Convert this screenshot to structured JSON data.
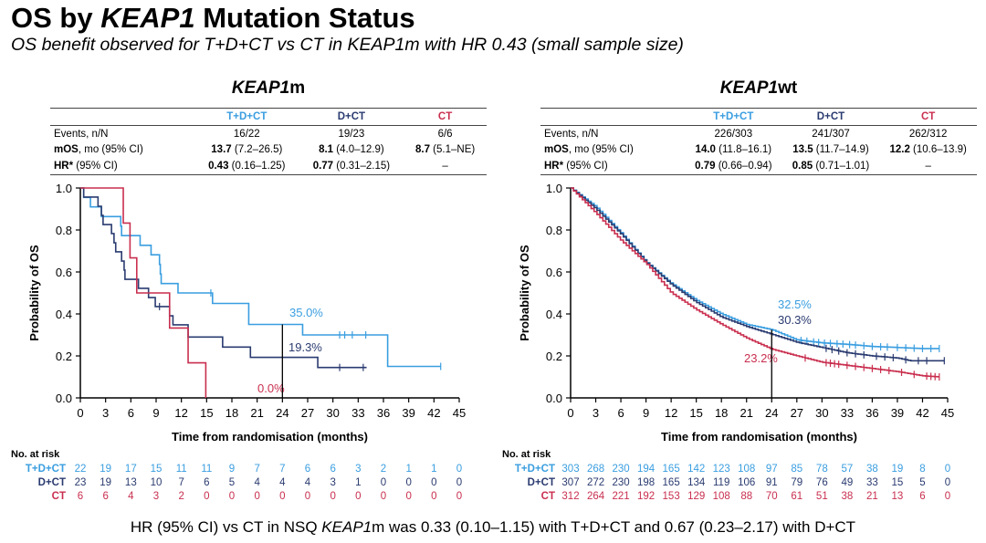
{
  "header": {
    "title_prefix": "OS by ",
    "title_gene": "KEAP1",
    "title_suffix": " Mutation Status",
    "subtitle": "OS benefit observed for T+D+CT vs CT in KEAP1m with HR 0.43 (small sample size)"
  },
  "colors": {
    "tdct": "#3a9ee0",
    "dct": "#2a3b70",
    "ct": "#c92f4f"
  },
  "panels": [
    {
      "title_gene": "KEAP1",
      "title_suffix": "m",
      "table": {
        "columns": [
          "T+D+CT",
          "D+CT",
          "CT"
        ],
        "rows": [
          {
            "label_bold": "",
            "label": "Events, n/N",
            "cells": [
              [
                "",
                "16/22"
              ],
              [
                "",
                "19/23"
              ],
              [
                "",
                "6/6"
              ]
            ]
          },
          {
            "label_bold": "mOS",
            "label": ", mo (95% CI)",
            "cells": [
              [
                "13.7",
                " (7.2–26.5)"
              ],
              [
                "8.1",
                " (4.0–12.9)"
              ],
              [
                "8.7",
                " (5.1–NE)"
              ]
            ]
          },
          {
            "label_bold": "HR*",
            "label": " (95% CI)",
            "cells": [
              [
                "0.43",
                " (0.16–1.25)"
              ],
              [
                "0.77",
                " (0.31–2.15)"
              ],
              [
                "",
                "–"
              ]
            ]
          }
        ]
      }
    },
    {
      "title_gene": "KEAP1",
      "title_suffix": "wt",
      "table": {
        "columns": [
          "T+D+CT",
          "D+CT",
          "CT"
        ],
        "rows": [
          {
            "label_bold": "",
            "label": "Events, n/N",
            "cells": [
              [
                "",
                "226/303"
              ],
              [
                "",
                "241/307"
              ],
              [
                "",
                "262/312"
              ]
            ]
          },
          {
            "label_bold": "mOS",
            "label": ", mo (95% CI)",
            "cells": [
              [
                "14.0",
                " (11.8–16.1)"
              ],
              [
                "13.5",
                " (11.7–14.9)"
              ],
              [
                "12.2",
                " (10.6–13.9)"
              ]
            ]
          },
          {
            "label_bold": "HR*",
            "label": " (95% CI)",
            "cells": [
              [
                "0.79",
                " (0.66–0.94)"
              ],
              [
                "0.85",
                " (0.71–1.01)"
              ],
              [
                "",
                "–"
              ]
            ]
          }
        ]
      }
    }
  ],
  "chart_data": [
    {
      "type": "line",
      "title": "KEAP1m",
      "xlabel": "Time from randomisation (months)",
      "ylabel": "Probability of OS",
      "xlim": [
        0,
        45
      ],
      "ylim": [
        0,
        1
      ],
      "xticks": [
        0,
        3,
        6,
        9,
        12,
        15,
        18,
        21,
        24,
        27,
        30,
        33,
        36,
        39,
        42,
        45
      ],
      "yticks": [
        "0.0",
        "0.2",
        "0.4",
        "0.6",
        "0.8",
        "1.0"
      ],
      "grid": false,
      "landmark_time": 24,
      "series": [
        {
          "name": "T+D+CT",
          "color": "#3a9ee0",
          "end": 42.8,
          "landmark_label": "35.0%",
          "steps": [
            [
              0.4,
              0.955
            ],
            [
              1.2,
              0.91
            ],
            [
              2.5,
              0.864
            ],
            [
              4.8,
              0.818
            ],
            [
              4.9,
              0.773
            ],
            [
              7.1,
              0.727
            ],
            [
              8.4,
              0.682
            ],
            [
              9.4,
              0.636
            ],
            [
              9.5,
              0.59
            ],
            [
              9.6,
              0.545
            ],
            [
              11.6,
              0.5
            ],
            [
              15.7,
              0.45
            ],
            [
              20.0,
              0.35
            ],
            [
              26.4,
              0.3
            ],
            [
              36.5,
              0.15
            ]
          ],
          "censored": [
            15.5,
            30.8,
            31.4,
            32.3,
            33.9,
            42.8
          ]
        },
        {
          "name": "D+CT",
          "color": "#2a3b70",
          "end": 34.0,
          "landmark_label": "19.3%",
          "steps": [
            [
              0.4,
              0.957
            ],
            [
              2.1,
              0.913
            ],
            [
              2.5,
              0.87
            ],
            [
              2.7,
              0.826
            ],
            [
              3.7,
              0.783
            ],
            [
              4.0,
              0.739
            ],
            [
              4.2,
              0.696
            ],
            [
              4.9,
              0.652
            ],
            [
              5.2,
              0.609
            ],
            [
              5.3,
              0.565
            ],
            [
              6.9,
              0.522
            ],
            [
              8.1,
              0.478
            ],
            [
              8.9,
              0.435
            ],
            [
              10.6,
              0.391
            ],
            [
              11.0,
              0.348
            ],
            [
              12.8,
              0.29
            ],
            [
              16.9,
              0.242
            ],
            [
              20.2,
              0.193
            ],
            [
              28.2,
              0.145
            ]
          ],
          "censored": [
            9.4,
            30.8,
            33.6
          ]
        },
        {
          "name": "CT",
          "color": "#c92f4f",
          "end": 14.9,
          "landmark_label": "0.0%",
          "steps": [
            [
              5.1,
              0.833
            ],
            [
              5.9,
              0.667
            ],
            [
              6.7,
              0.5
            ],
            [
              10.6,
              0.333
            ],
            [
              12.8,
              0.167
            ],
            [
              14.9,
              0.0
            ]
          ],
          "censored": []
        }
      ],
      "at_risk": {
        "label": "No. at risk",
        "rows": [
          {
            "name": "T+D+CT",
            "values": [
              22,
              19,
              17,
              15,
              11,
              11,
              9,
              7,
              7,
              6,
              6,
              3,
              2,
              1,
              1,
              0
            ]
          },
          {
            "name": "D+CT",
            "values": [
              23,
              19,
              13,
              10,
              7,
              6,
              5,
              4,
              4,
              4,
              3,
              1,
              0,
              0,
              0,
              0
            ]
          },
          {
            "name": "CT",
            "values": [
              6,
              6,
              4,
              3,
              2,
              0,
              0,
              0,
              0,
              0,
              0,
              0,
              0,
              0,
              0,
              0
            ]
          }
        ]
      }
    },
    {
      "type": "line",
      "title": "KEAP1wt",
      "xlabel": "Time from randomisation (months)",
      "ylabel": "Probability of OS",
      "xlim": [
        0,
        45
      ],
      "ylim": [
        0,
        1
      ],
      "xticks": [
        0,
        3,
        6,
        9,
        12,
        15,
        18,
        21,
        24,
        27,
        30,
        33,
        36,
        39,
        42,
        45
      ],
      "yticks": [
        "0.0",
        "0.2",
        "0.4",
        "0.6",
        "0.8",
        "1.0"
      ],
      "grid": false,
      "landmark_time": 24,
      "series": [
        {
          "name": "T+D+CT",
          "color": "#3a9ee0",
          "end": 44,
          "landmark_label": "32.5%",
          "curve": [
            [
              0,
              1
            ],
            [
              3,
              0.91
            ],
            [
              6,
              0.785
            ],
            [
              9,
              0.647
            ],
            [
              12,
              0.545
            ],
            [
              15,
              0.465
            ],
            [
              18,
              0.4
            ],
            [
              21,
              0.35
            ],
            [
              24,
              0.325
            ],
            [
              27,
              0.276
            ],
            [
              30,
              0.262
            ],
            [
              33,
              0.255
            ],
            [
              36,
              0.245
            ],
            [
              39,
              0.24
            ],
            [
              42,
              0.235
            ],
            [
              44,
              0.235
            ]
          ],
          "censored": [
            27.5,
            28.2,
            29,
            29.6,
            30.3,
            31,
            31.8,
            32.5,
            33.3,
            34,
            35,
            36,
            37,
            37.8,
            39,
            40,
            41,
            42,
            43,
            44
          ]
        },
        {
          "name": "D+CT",
          "color": "#2a3b70",
          "end": 44.6,
          "landmark_label": "30.3%",
          "curve": [
            [
              0,
              1
            ],
            [
              3,
              0.9
            ],
            [
              6,
              0.78
            ],
            [
              9,
              0.645
            ],
            [
              12,
              0.54
            ],
            [
              15,
              0.455
            ],
            [
              18,
              0.385
            ],
            [
              21,
              0.34
            ],
            [
              24,
              0.303
            ],
            [
              27,
              0.265
            ],
            [
              30,
              0.24
            ],
            [
              33,
              0.215
            ],
            [
              36,
              0.2
            ],
            [
              39,
              0.19
            ],
            [
              40.5,
              0.177
            ],
            [
              44.6,
              0.177
            ]
          ],
          "censored": [
            30.5,
            31.2,
            32,
            33,
            34,
            35,
            36.5,
            37.5,
            38.5,
            40,
            41.5,
            42.5,
            44.6
          ]
        },
        {
          "name": "CT",
          "color": "#c92f4f",
          "end": 44,
          "landmark_label": "23.2%",
          "curve": [
            [
              0,
              1
            ],
            [
              3,
              0.88
            ],
            [
              6,
              0.75
            ],
            [
              9,
              0.64
            ],
            [
              12,
              0.5
            ],
            [
              15,
              0.42
            ],
            [
              18,
              0.35
            ],
            [
              21,
              0.285
            ],
            [
              24,
              0.232
            ],
            [
              27,
              0.2
            ],
            [
              30,
              0.17
            ],
            [
              33,
              0.155
            ],
            [
              36,
              0.14
            ],
            [
              39,
              0.125
            ],
            [
              42,
              0.105
            ],
            [
              44,
              0.1
            ]
          ],
          "censored": [
            28,
            30.5,
            31,
            31.5,
            32,
            33,
            34,
            35,
            36,
            37,
            38,
            39.5,
            41,
            42.5,
            43,
            43.5,
            44
          ]
        }
      ],
      "at_risk": {
        "label": "No. at risk",
        "rows": [
          {
            "name": "T+D+CT",
            "values": [
              303,
              268,
              230,
              194,
              165,
              142,
              123,
              108,
              97,
              85,
              78,
              57,
              38,
              19,
              8,
              0
            ]
          },
          {
            "name": "D+CT",
            "values": [
              307,
              272,
              230,
              198,
              165,
              134,
              119,
              106,
              91,
              79,
              76,
              49,
              33,
              15,
              5,
              0
            ]
          },
          {
            "name": "CT",
            "values": [
              312,
              264,
              221,
              192,
              153,
              129,
              108,
              88,
              70,
              61,
              51,
              38,
              21,
              13,
              6,
              0
            ]
          }
        ]
      }
    }
  ],
  "footer": {
    "prefix": "HR (95% CI) vs CT in NSQ ",
    "gene": "KEAP1",
    "suffix": "m was 0.33 (0.10–1.15) with T+D+CT and 0.67 (0.23–2.17) with D+CT"
  }
}
